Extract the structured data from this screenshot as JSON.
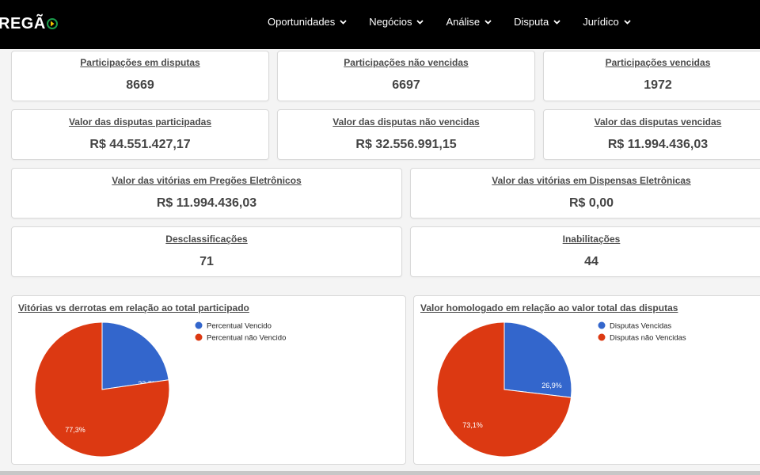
{
  "header": {
    "logo_text": "REGÃ",
    "logo_icon": "brand-arrow-icon",
    "nav": [
      {
        "label": "Oportunidades",
        "icon": "chevron-down-icon"
      },
      {
        "label": "Negócios",
        "icon": "chevron-down-icon"
      },
      {
        "label": "Análise",
        "icon": "chevron-down-icon"
      },
      {
        "label": "Disputa",
        "icon": "chevron-down-icon"
      },
      {
        "label": "Jurídico",
        "icon": "chevron-down-icon"
      }
    ]
  },
  "stats": {
    "participations": {
      "title": "Participações em disputas",
      "value": "8669"
    },
    "not_won": {
      "title": "Participações não vencidas",
      "value": "6697"
    },
    "won": {
      "title": "Participações vencidas",
      "value": "1972"
    },
    "value_participated": {
      "title": "Valor das disputas participadas",
      "value": "R$ 44.551.427,17"
    },
    "value_not_won": {
      "title": "Valor das disputas não vencidas",
      "value": "R$ 32.556.991,15"
    },
    "value_won": {
      "title": "Valor das disputas vencidas",
      "value": "R$ 11.994.436,03"
    },
    "pregoes": {
      "title": "Valor das vitórias em Pregões Eletrônicos",
      "value": "R$ 11.994.436,03"
    },
    "dispensas": {
      "title": "Valor das vitórias em Dispensas Eletrônicas",
      "value": "R$ 0,00"
    },
    "desclassificacoes": {
      "title": "Desclassificações",
      "value": "71"
    },
    "inabilitacoes": {
      "title": "Inabilitações",
      "value": "44"
    }
  },
  "chart_data": [
    {
      "type": "pie",
      "title": "Vitórias vs derrotas em relação ao total participado",
      "legend_position": "top-right",
      "slices": [
        {
          "label": "Percentual Vencido",
          "value": 22.7,
          "display": "22,7%",
          "color": "#3366cc"
        },
        {
          "label": "Percentual não Vencido",
          "value": 77.3,
          "display": "77,3%",
          "color": "#dc3912"
        }
      ]
    },
    {
      "type": "pie",
      "title": "Valor homologado em relação ao valor total das disputas",
      "legend_position": "top-right",
      "slices": [
        {
          "label": "Disputas Vencidas",
          "value": 26.9,
          "display": "26,9%",
          "color": "#3366cc"
        },
        {
          "label": "Disputas não Vencidas",
          "value": 73.1,
          "display": "73,1%",
          "color": "#dc3912"
        }
      ]
    }
  ]
}
